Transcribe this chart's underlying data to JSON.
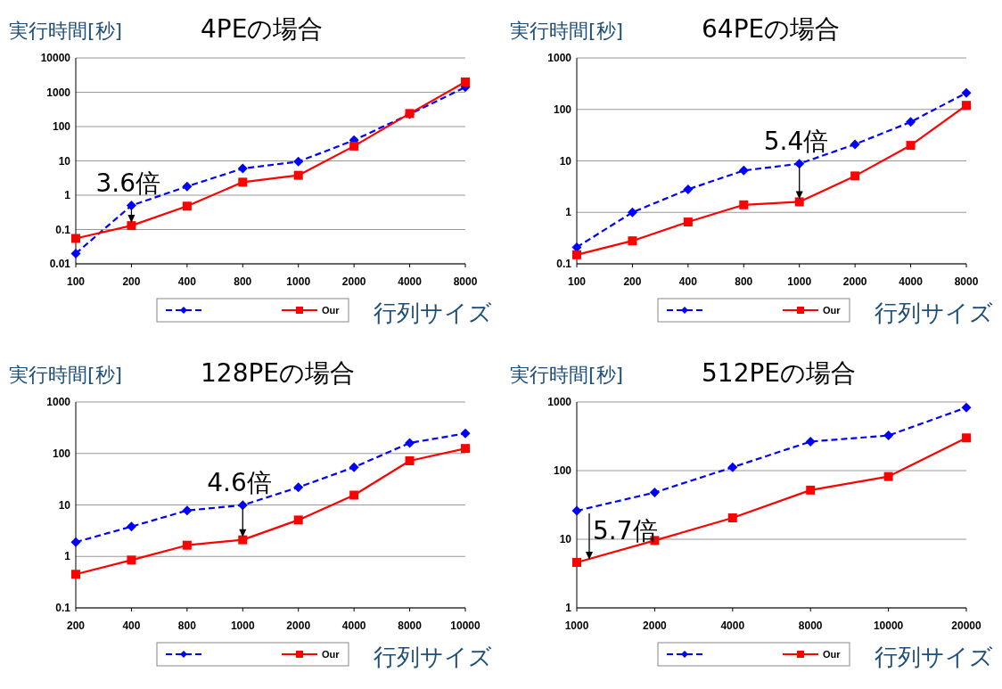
{
  "chart_data": [
    {
      "type": "line",
      "title": "4PEの場合",
      "ylabel": "実行時間[秒]",
      "xlabel": "行列サイズ",
      "categories": [
        "100",
        "200",
        "400",
        "800",
        "1000",
        "2000",
        "4000",
        "8000"
      ],
      "log": "y",
      "ylim": [
        0.01,
        10000
      ],
      "yticks": [
        0.01,
        0.1,
        1,
        10,
        100,
        1000,
        10000
      ],
      "grid": "y",
      "legend": "bottom",
      "series": [
        {
          "color": "#0000ff",
          "line_style": "dashed",
          "marker": "diamond",
          "values": [
            0.02,
            0.5,
            1.8,
            6,
            9.5,
            40,
            230,
            1400
          ]
        },
        {
          "name": "Our",
          "color": "#ff0000",
          "line_style": "solid",
          "marker": "square",
          "values": [
            0.055,
            0.13,
            0.48,
            2.4,
            3.8,
            27,
            240,
            2000
          ]
        }
      ],
      "annotations": [
        {
          "text": "3.6倍",
          "x": "200",
          "y": 0.5
        }
      ]
    },
    {
      "type": "line",
      "title": "64PEの場合",
      "ylabel": "実行時間[秒]",
      "xlabel": "行列サイズ",
      "categories": [
        "100",
        "200",
        "400",
        "800",
        "1000",
        "2000",
        "4000",
        "8000"
      ],
      "log": "y",
      "ylim": [
        0.1,
        1000
      ],
      "yticks": [
        0.1,
        1,
        10,
        100,
        1000
      ],
      "grid": "y",
      "legend": "bottom",
      "series": [
        {
          "color": "#0000ff",
          "line_style": "dashed",
          "marker": "diamond",
          "values": [
            0.21,
            1.0,
            2.8,
            6.5,
            8.8,
            21,
            57,
            210
          ]
        },
        {
          "name": "Our",
          "color": "#ff0000",
          "line_style": "solid",
          "marker": "square",
          "values": [
            0.15,
            0.28,
            0.65,
            1.4,
            1.6,
            5.1,
            20,
            120
          ]
        }
      ],
      "annotations": [
        {
          "text": "5.4倍",
          "x": "1000",
          "y": 8.8
        }
      ]
    },
    {
      "type": "line",
      "title": "128PEの場合",
      "ylabel": "実行時間[秒]",
      "xlabel": "行列サイズ",
      "categories": [
        "200",
        "400",
        "800",
        "1000",
        "2000",
        "4000",
        "8000",
        "10000"
      ],
      "log": "y",
      "ylim": [
        0.1,
        1000
      ],
      "yticks": [
        0.1,
        1,
        10,
        100,
        1000
      ],
      "grid": "y",
      "legend": "bottom",
      "series": [
        {
          "color": "#0000ff",
          "line_style": "dashed",
          "marker": "diamond",
          "values": [
            1.9,
            3.8,
            7.8,
            9.9,
            22,
            54,
            160,
            245
          ]
        },
        {
          "name": "Our",
          "color": "#ff0000",
          "line_style": "solid",
          "marker": "square",
          "values": [
            0.45,
            0.85,
            1.65,
            2.1,
            5.1,
            15.5,
            72,
            125
          ]
        }
      ],
      "annotations": [
        {
          "text": "4.6倍",
          "x": "1000",
          "y": 9.9
        }
      ]
    },
    {
      "type": "line",
      "title": "512PEの場合",
      "ylabel": "実行時間[秒]",
      "xlabel": "行列サイズ",
      "categories": [
        "1000",
        "2000",
        "4000",
        "8000",
        "10000",
        "20000"
      ],
      "log": "y",
      "ylim": [
        1,
        1000
      ],
      "yticks": [
        1,
        10,
        100,
        1000
      ],
      "grid": "y",
      "legend": "bottom",
      "series": [
        {
          "color": "#0000ff",
          "line_style": "dashed",
          "marker": "diamond",
          "values": [
            26,
            48,
            112,
            265,
            325,
            830
          ]
        },
        {
          "name": "Our",
          "color": "#ff0000",
          "line_style": "solid",
          "marker": "square",
          "values": [
            4.6,
            9.6,
            20.5,
            52,
            82,
            300
          ]
        }
      ],
      "annotations": [
        {
          "text": "5.7倍",
          "x": "1000",
          "y": 26
        }
      ]
    }
  ]
}
